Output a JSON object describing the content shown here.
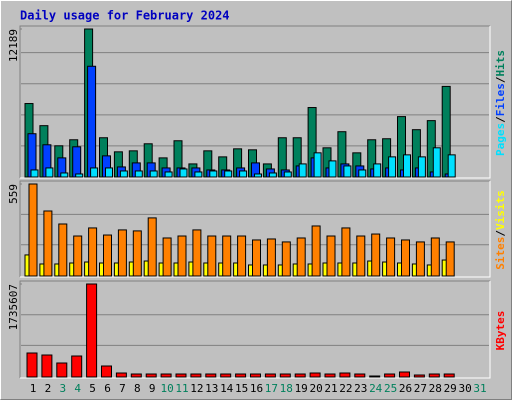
{
  "chart_data": {
    "type": "bar",
    "title": "Daily usage for February 2024",
    "title_color": "#0000c0",
    "categories": [
      "1",
      "2",
      "3",
      "4",
      "5",
      "6",
      "7",
      "8",
      "9",
      "10",
      "11",
      "12",
      "13",
      "14",
      "15",
      "16",
      "17",
      "18",
      "19",
      "20",
      "21",
      "22",
      "23",
      "24",
      "25",
      "26",
      "27",
      "28",
      "29",
      "30",
      "31"
    ],
    "highlight_categories": [
      "3",
      "4",
      "10",
      "11",
      "17",
      "18",
      "24",
      "25",
      "31"
    ],
    "highlight_color": "#00805c",
    "legend_separator": "/",
    "panels": [
      {
        "ylim": [
          0,
          12189
        ],
        "yticks": [
          12189
        ],
        "series": [
          {
            "name": "Hits",
            "color": "#00805c",
            "values": [
              6050,
              4228,
              2570,
              3067,
              12189,
              3233,
              2073,
              2155,
              2736,
              1575,
              2985,
              1078,
              2155,
              1658,
              2321,
              2239,
              1078,
              3233,
              3233,
              5721,
              2404,
              3731,
              1990,
              3067,
              3151,
              4975,
              3897,
              4643,
              7462,
              null,
              null
            ]
          },
          {
            "name": "Files",
            "color": "#0040ff",
            "values": [
              3565,
              2653,
              1575,
              2487,
              9120,
              1741,
              829,
              1161,
              1161,
              746,
              746,
              746,
              580,
              580,
              746,
              1161,
              663,
              580,
              912,
              1575,
              746,
              1078,
              912,
              663,
              746,
              580,
              746,
              415,
              249,
              null,
              null
            ]
          },
          {
            "name": "Pages",
            "color": "#00e0ff",
            "values": [
              580,
              746,
              332,
              249,
              746,
              746,
              497,
              497,
              497,
              415,
              663,
              415,
              497,
              497,
              497,
              249,
              332,
              415,
              1078,
              1990,
              1327,
              912,
              580,
              1078,
              1658,
              1824,
              1658,
              2404,
              1824,
              null,
              null
            ]
          }
        ]
      },
      {
        "ylim": [
          0,
          559
        ],
        "yticks": [
          559
        ],
        "series": [
          {
            "name": "Visits",
            "color": "#ffff00",
            "values": [
              128,
              73,
              73,
              79,
              85,
              79,
              79,
              85,
              91,
              79,
              79,
              85,
              79,
              79,
              79,
              67,
              67,
              67,
              73,
              73,
              79,
              79,
              79,
              91,
              85,
              79,
              73,
              67,
              97,
              null,
              null
            ]
          },
          {
            "name": "Sites",
            "color": "#ff8000",
            "values": [
              559,
              395,
              316,
              243,
              292,
              249,
              280,
              274,
              353,
              231,
              243,
              280,
              243,
              243,
              243,
              219,
              225,
              207,
              231,
              304,
              243,
              292,
              243,
              255,
              231,
              219,
              207,
              231,
              207,
              null,
              null
            ]
          }
        ]
      },
      {
        "ylim": [
          0,
          1735607
        ],
        "yticks": [
          1735607
        ],
        "series": [
          {
            "name": "KBytes",
            "color": "#ff0000",
            "values": [
              447900,
              410600,
              261300,
              391900,
              1735607,
              205300,
              74600,
              56000,
              56000,
              56000,
              56000,
              56000,
              56000,
              56000,
              56000,
              56000,
              56000,
              56000,
              56000,
              74600,
              56000,
              74600,
              56000,
              18700,
              56000,
              93300,
              37300,
              56000,
              56000,
              null,
              null
            ]
          }
        ]
      }
    ]
  }
}
